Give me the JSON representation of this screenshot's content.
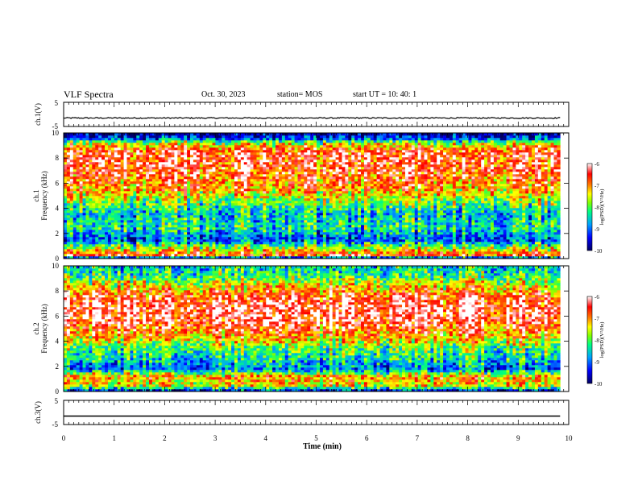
{
  "header": {
    "title": "VLF Spectra",
    "date": "Oct. 30, 2023",
    "station": "station= MOS",
    "start": "start UT =  10: 40: 1"
  },
  "chart_data": [
    {
      "type": "line",
      "name": "ch1-waveform",
      "ylabel": "ch.1(V)",
      "ylim": [
        -5,
        5
      ],
      "yticks": [
        "5",
        "-5"
      ],
      "level": -1.5,
      "xlim": [
        0,
        10
      ]
    },
    {
      "type": "heatmap",
      "name": "ch1-spectrogram",
      "ylabel": "ch.1\nFrequency (kHz)",
      "ylabel_lines": [
        "ch.1",
        "Frequency (kHz)"
      ],
      "ylim": [
        0,
        10
      ],
      "yticks": [
        "0",
        "2",
        "4",
        "6",
        "8",
        "10"
      ],
      "xlim": [
        0,
        9.83
      ],
      "colorbar": {
        "label": "log(PSD)(V²/Hz)",
        "min": -10,
        "max": -6,
        "ticks": [
          "-6",
          "-7",
          "-8",
          "-9",
          "-10"
        ]
      },
      "intensity_profile": [
        {
          "f": 0.0,
          "v": -9.8
        },
        {
          "f": 0.3,
          "v": -6.6
        },
        {
          "f": 1.0,
          "v": -8.0
        },
        {
          "f": 1.5,
          "v": -9.2
        },
        {
          "f": 2.5,
          "v": -8.3
        },
        {
          "f": 3.5,
          "v": -8.6
        },
        {
          "f": 4.5,
          "v": -7.9
        },
        {
          "f": 5.5,
          "v": -7.1
        },
        {
          "f": 7.0,
          "v": -6.6
        },
        {
          "f": 8.5,
          "v": -6.5
        },
        {
          "f": 9.2,
          "v": -7.6
        },
        {
          "f": 9.6,
          "v": -9.3
        },
        {
          "f": 10.0,
          "v": -9.9
        }
      ]
    },
    {
      "type": "heatmap",
      "name": "ch2-spectrogram",
      "ylabel": "ch.2\nFrequency (kHz)",
      "ylabel_lines": [
        "ch.2",
        "Frequency (kHz)"
      ],
      "ylim": [
        0,
        10
      ],
      "yticks": [
        "0",
        "2",
        "4",
        "6",
        "8",
        "10"
      ],
      "xlim": [
        0,
        9.83
      ],
      "colorbar": {
        "label": "log(PSD)(V²/Hz)",
        "min": -10,
        "max": -6,
        "ticks": [
          "-6",
          "-7",
          "-8",
          "-9",
          "-10"
        ]
      },
      "intensity_profile": [
        {
          "f": 0.0,
          "v": -9.6
        },
        {
          "f": 0.5,
          "v": -7.4
        },
        {
          "f": 1.2,
          "v": -7.0
        },
        {
          "f": 1.8,
          "v": -9.0
        },
        {
          "f": 2.6,
          "v": -8.4
        },
        {
          "f": 3.5,
          "v": -8.0
        },
        {
          "f": 4.2,
          "v": -7.2
        },
        {
          "f": 5.5,
          "v": -6.4
        },
        {
          "f": 6.5,
          "v": -6.2
        },
        {
          "f": 7.5,
          "v": -6.5
        },
        {
          "f": 8.5,
          "v": -7.4
        },
        {
          "f": 9.3,
          "v": -8.2
        },
        {
          "f": 10.0,
          "v": -8.5
        }
      ]
    },
    {
      "type": "line",
      "name": "ch3-waveform",
      "ylabel": "ch.3(V)",
      "ylim": [
        -5,
        5
      ],
      "yticks": [
        "5",
        "-5"
      ],
      "level": -1.5,
      "xlim": [
        0,
        10
      ]
    }
  ],
  "xaxis": {
    "label": "Time (min)",
    "ticks": [
      "0",
      "1",
      "2",
      "3",
      "4",
      "5",
      "6",
      "7",
      "8",
      "9",
      "10"
    ],
    "xlim": [
      0,
      10
    ]
  },
  "colors": {
    "frame": "#000000",
    "colormap": [
      "#000060",
      "#0000ff",
      "#00a0ff",
      "#00ff80",
      "#80ff00",
      "#ffff00",
      "#ff8000",
      "#ff0000",
      "#ffffff"
    ]
  }
}
